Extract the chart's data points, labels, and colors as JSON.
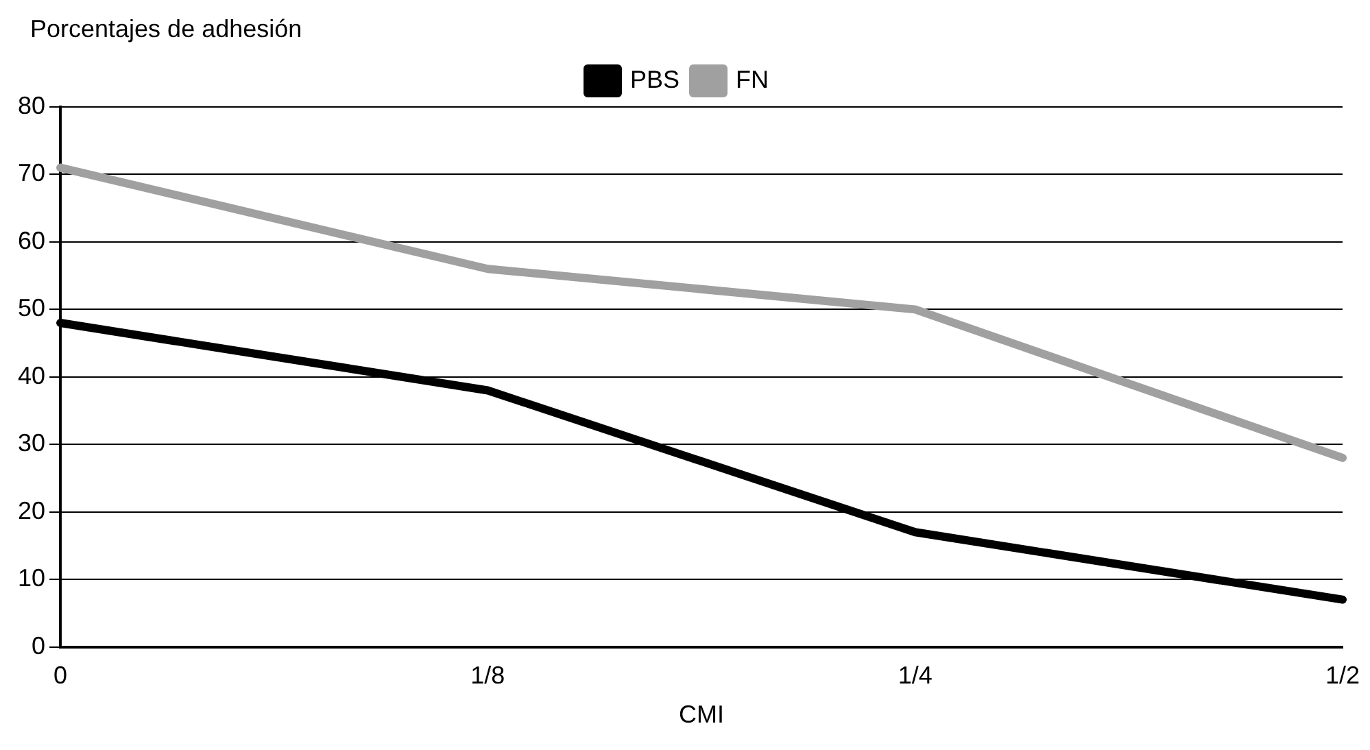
{
  "chart_data": {
    "type": "line",
    "ylabel": "Porcentajes de adhesión",
    "xlabel": "CMI",
    "categories": [
      "0",
      "1/8",
      "1/4",
      "1/2"
    ],
    "series": [
      {
        "name": "PBS",
        "color": "#000000",
        "values": [
          48,
          38,
          17,
          7
        ]
      },
      {
        "name": "FN",
        "color": "#a0a0a0",
        "values": [
          71,
          56,
          50,
          28
        ]
      }
    ],
    "ylim": [
      0,
      80
    ],
    "yticks": [
      0,
      10,
      20,
      30,
      40,
      50,
      60,
      70,
      80
    ],
    "grid": "y",
    "legend": "top",
    "marker": "none",
    "line_style": "solid"
  }
}
